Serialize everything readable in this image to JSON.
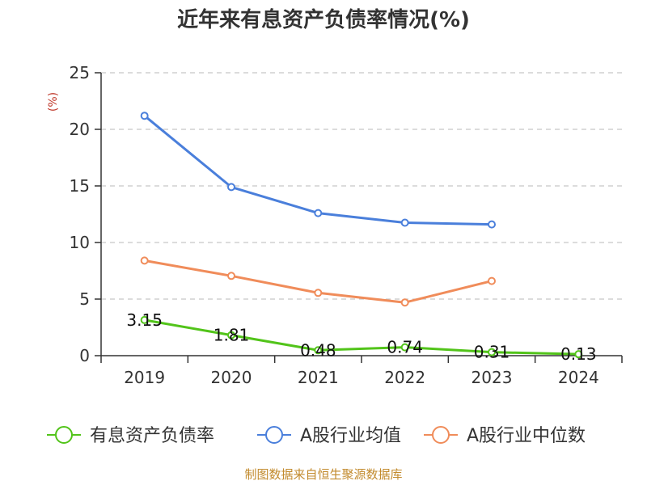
{
  "chart_data": {
    "type": "line",
    "title": "近年来有息资产负债率情况(%)",
    "ylabel": "(%)",
    "xlabel": "",
    "ylim": [
      0,
      25
    ],
    "yticks": [
      0,
      5,
      10,
      15,
      20,
      25
    ],
    "categories": [
      "2019",
      "2020",
      "2021",
      "2022",
      "2023",
      "2024"
    ],
    "grid": true,
    "legend_position": "bottom",
    "series": [
      {
        "name": "有息资产负债率",
        "color": "#52c41a",
        "values": [
          3.15,
          1.81,
          0.48,
          0.74,
          0.31,
          0.13
        ],
        "labels": [
          "3.15",
          "1.81",
          "0.48",
          "0.74",
          "0.31",
          "0.13"
        ]
      },
      {
        "name": "A股行业均值",
        "color": "#4a7fdb",
        "values": [
          21.2,
          14.9,
          12.6,
          11.75,
          11.6,
          null
        ]
      },
      {
        "name": "A股行业中位数",
        "color": "#f08c5a",
        "values": [
          8.4,
          7.05,
          5.55,
          4.7,
          6.6,
          null
        ]
      }
    ]
  },
  "source": "制图数据来自恒生聚源数据库"
}
